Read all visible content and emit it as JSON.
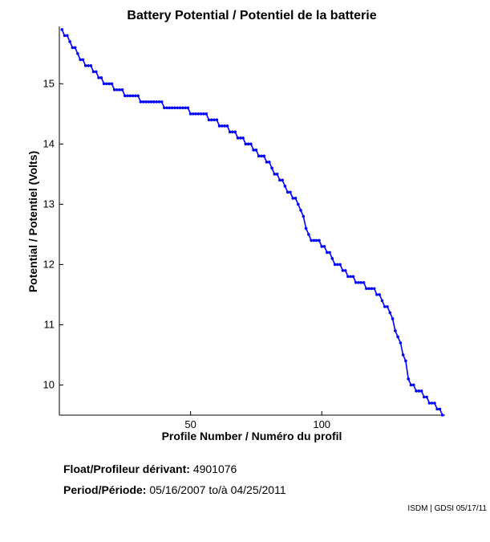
{
  "chart_data": {
    "type": "line",
    "title": "Battery Potential / Potentiel de la batterie",
    "xlabel": "Profile Number / Numéro du profil",
    "ylabel": "Potential / Potentiel (Volts)",
    "xlim": [
      0,
      147
    ],
    "ylim": [
      9.5,
      15.95
    ],
    "xticks": [
      50,
      100
    ],
    "yticks": [
      10,
      11,
      12,
      13,
      14,
      15
    ],
    "grid": false,
    "series_color": "#0000ff",
    "series": [
      {
        "x": [
          1,
          2,
          3,
          4,
          5,
          6,
          7,
          8,
          9,
          10,
          11,
          12,
          13,
          14,
          15,
          16,
          17,
          18,
          19,
          20,
          21,
          22,
          23,
          24,
          25,
          26,
          27,
          28,
          29,
          30,
          31,
          32,
          33,
          34,
          35,
          36,
          37,
          38,
          39,
          40,
          41,
          42,
          43,
          44,
          45,
          46,
          47,
          48,
          49,
          50,
          51,
          52,
          53,
          54,
          55,
          56,
          57,
          58,
          59,
          60,
          61,
          62,
          63,
          64,
          65,
          66,
          67,
          68,
          69,
          70,
          71,
          72,
          73,
          74,
          75,
          76,
          77,
          78,
          79,
          80,
          81,
          82,
          83,
          84,
          85,
          86,
          87,
          88,
          89,
          90,
          91,
          92,
          93,
          94,
          95,
          96,
          97,
          98,
          99,
          100,
          101,
          102,
          103,
          104,
          105,
          106,
          107,
          108,
          109,
          110,
          111,
          112,
          113,
          114,
          115,
          116,
          117,
          118,
          119,
          120,
          121,
          122,
          123,
          124,
          125,
          126,
          127,
          128,
          129,
          130,
          131,
          132,
          133,
          134,
          135,
          136,
          137,
          138,
          139,
          140,
          141,
          142,
          143,
          144,
          145,
          146
        ],
        "values": [
          15.9,
          15.8,
          15.8,
          15.7,
          15.6,
          15.6,
          15.5,
          15.4,
          15.4,
          15.3,
          15.3,
          15.3,
          15.2,
          15.2,
          15.1,
          15.1,
          15.0,
          15.0,
          15.0,
          15.0,
          14.9,
          14.9,
          14.9,
          14.9,
          14.8,
          14.8,
          14.8,
          14.8,
          14.8,
          14.8,
          14.7,
          14.7,
          14.7,
          14.7,
          14.7,
          14.7,
          14.7,
          14.7,
          14.7,
          14.6,
          14.6,
          14.6,
          14.6,
          14.6,
          14.6,
          14.6,
          14.6,
          14.6,
          14.6,
          14.5,
          14.5,
          14.5,
          14.5,
          14.5,
          14.5,
          14.5,
          14.4,
          14.4,
          14.4,
          14.4,
          14.3,
          14.3,
          14.3,
          14.3,
          14.2,
          14.2,
          14.2,
          14.1,
          14.1,
          14.1,
          14.0,
          14.0,
          14.0,
          13.9,
          13.9,
          13.8,
          13.8,
          13.8,
          13.7,
          13.7,
          13.6,
          13.5,
          13.5,
          13.4,
          13.4,
          13.3,
          13.2,
          13.2,
          13.1,
          13.1,
          13.0,
          12.9,
          12.8,
          12.6,
          12.5,
          12.4,
          12.4,
          12.4,
          12.4,
          12.3,
          12.3,
          12.2,
          12.2,
          12.1,
          12.0,
          12.0,
          12.0,
          11.9,
          11.9,
          11.8,
          11.8,
          11.8,
          11.7,
          11.7,
          11.7,
          11.7,
          11.6,
          11.6,
          11.6,
          11.6,
          11.5,
          11.5,
          11.4,
          11.3,
          11.3,
          11.2,
          11.1,
          10.9,
          10.8,
          10.7,
          10.5,
          10.4,
          10.1,
          10.0,
          10.0,
          9.9,
          9.9,
          9.9,
          9.8,
          9.8,
          9.7,
          9.7,
          9.7,
          9.6,
          9.6,
          9.5
        ]
      }
    ]
  },
  "info": {
    "float_label": "Float/Profileur dérivant:",
    "float_value": "4901076",
    "period_label": "Period/Période:",
    "period_start": "05/16/2007",
    "period_sep": "to/à",
    "period_end": "04/25/2011",
    "credit": "ISDM | GDSI 05/17/11"
  }
}
